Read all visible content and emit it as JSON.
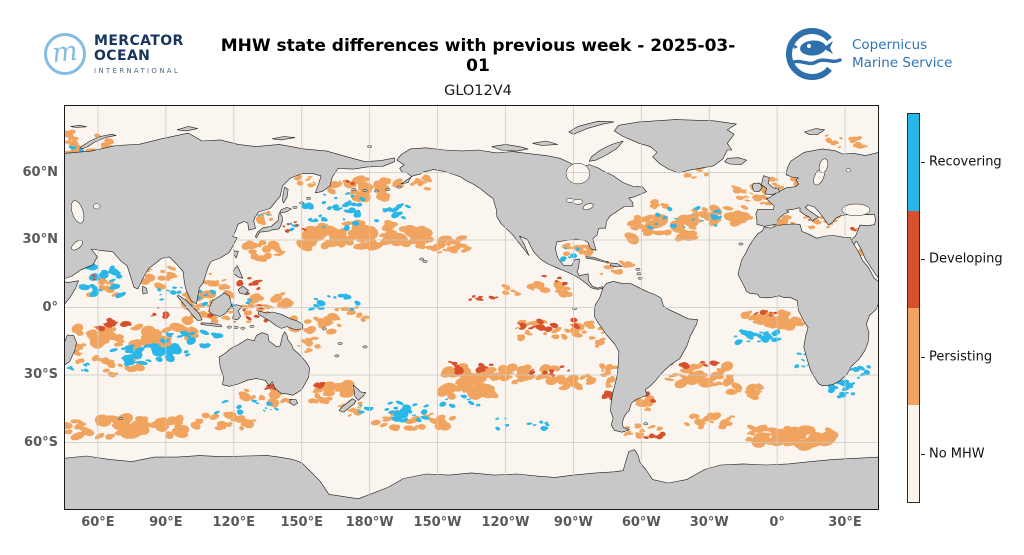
{
  "header": {
    "mercator_logo": {
      "line1": "MERCATOR",
      "line2": "OCEAN",
      "line3": "INTERNATIONAL"
    },
    "title": "MHW state differences with previous week - 2025-03-01",
    "subtitle": "GLO12V4",
    "copernicus_logo": {
      "line1": "Copernicus",
      "line2": "Marine Service"
    }
  },
  "map": {
    "lon_labels": [
      "60°E",
      "90°E",
      "120°E",
      "150°E",
      "180°W",
      "150°W",
      "120°W",
      "90°W",
      "60°W",
      "30°W",
      "0°",
      "30°E"
    ],
    "lat_labels": [
      "60°N",
      "30°N",
      "0°",
      "30°S",
      "60°S"
    ],
    "colors": {
      "land": "#c8c8c8",
      "coast": "#1a1a1a",
      "ocean": "#fbf5ef",
      "grid": "#c9c9c9",
      "recovering": "#29b6e8",
      "developing": "#d6502d",
      "persisting": "#f0a45f",
      "no_mhw": "#faf3ec"
    },
    "legend": [
      {
        "label": "Recovering",
        "key": "recovering"
      },
      {
        "label": "Developing",
        "key": "developing"
      },
      {
        "label": "Persisting",
        "key": "persisting"
      },
      {
        "label": "No MHW",
        "key": "no_mhw"
      }
    ],
    "mhw_clusters": {
      "persisting": [
        [
          55,
          73,
          20,
          13,
          20,
          5
        ],
        [
          390,
          74,
          18,
          6,
          12,
          4
        ],
        [
          175,
          53,
          28,
          9,
          24,
          7
        ],
        [
          199,
          56,
          14,
          7,
          10,
          5
        ],
        [
          152,
          57,
          10,
          6,
          8,
          4
        ],
        [
          178,
          32,
          55,
          11,
          55,
          8
        ],
        [
          213,
          28,
          22,
          8,
          18,
          6
        ],
        [
          133,
          25,
          18,
          9,
          16,
          5
        ],
        [
          120,
          0,
          48,
          13,
          46,
          6
        ],
        [
          155,
          -7,
          24,
          8,
          18,
          5
        ],
        [
          88,
          13,
          14,
          9,
          14,
          5
        ],
        [
          61,
          9,
          14,
          8,
          10,
          4
        ],
        [
          75,
          -13,
          55,
          9,
          48,
          7
        ],
        [
          70,
          -26,
          28,
          8,
          16,
          5
        ],
        [
          49,
          -20,
          7,
          9,
          8,
          4
        ],
        [
          72,
          -53,
          52,
          9,
          50,
          8
        ],
        [
          118,
          -50,
          30,
          8,
          18,
          5
        ],
        [
          135,
          -40,
          24,
          8,
          18,
          5
        ],
        [
          163,
          -38,
          17,
          9,
          20,
          6
        ],
        [
          172,
          -45,
          12,
          6,
          10,
          4
        ],
        [
          200,
          -50,
          38,
          8,
          22,
          5
        ],
        [
          223,
          -33,
          21,
          13,
          36,
          8
        ],
        [
          250,
          -30,
          34,
          7,
          26,
          6
        ],
        [
          271,
          -33,
          16,
          6,
          12,
          5
        ],
        [
          286,
          -31,
          7,
          11,
          10,
          4
        ],
        [
          253,
          8,
          28,
          6,
          20,
          5
        ],
        [
          262,
          -10,
          34,
          8,
          26,
          5
        ],
        [
          281,
          -13,
          7,
          9,
          8,
          4
        ],
        [
          272,
          25,
          12,
          7,
          12,
          5
        ],
        [
          288,
          17,
          18,
          6,
          12,
          4
        ],
        [
          310,
          35,
          29,
          10,
          34,
          7
        ],
        [
          335,
          42,
          24,
          8,
          22,
          6
        ],
        [
          349,
          50,
          16,
          8,
          16,
          5
        ],
        [
          366,
          55,
          18,
          7,
          12,
          4
        ],
        [
          308,
          45,
          9,
          5,
          7,
          4
        ],
        [
          325,
          60,
          10,
          5,
          6,
          3
        ],
        [
          373,
          38,
          28,
          5,
          20,
          4
        ],
        [
          398,
          20,
          5,
          11,
          8,
          3
        ],
        [
          50,
          27,
          6,
          3,
          4,
          3
        ],
        [
          358,
          -6,
          26,
          8,
          26,
          6
        ],
        [
          325,
          -30,
          29,
          8,
          26,
          6
        ],
        [
          344,
          -37,
          18,
          6,
          13,
          5
        ],
        [
          300,
          -43,
          9,
          9,
          10,
          5
        ],
        [
          365,
          -57,
          38,
          8,
          40,
          8
        ],
        [
          330,
          -51,
          22,
          6,
          14,
          5
        ],
        [
          300,
          -55,
          18,
          5,
          10,
          4
        ],
        [
          135,
          40,
          7,
          5,
          7,
          4
        ],
        [
          112,
          13,
          11,
          8,
          10,
          4
        ],
        [
          152,
          -17,
          12,
          7,
          9,
          4
        ],
        [
          170,
          -3,
          20,
          6,
          10,
          4
        ]
      ],
      "recovering": [
        [
          50,
          70,
          8,
          5,
          6,
          3
        ],
        [
          388,
          66,
          10,
          5,
          7,
          3
        ],
        [
          172,
          49,
          26,
          7,
          12,
          3
        ],
        [
          174,
          42,
          46,
          7,
          26,
          4
        ],
        [
          160,
          37,
          30,
          5,
          12,
          3
        ],
        [
          115,
          4,
          28,
          9,
          14,
          3
        ],
        [
          100,
          -16,
          28,
          11,
          24,
          5
        ],
        [
          62,
          12,
          17,
          13,
          22,
          5
        ],
        [
          92,
          6,
          10,
          6,
          8,
          3
        ],
        [
          80,
          -21,
          28,
          8,
          24,
          5
        ],
        [
          52,
          -27,
          8,
          5,
          6,
          3
        ],
        [
          125,
          -45,
          28,
          7,
          12,
          3
        ],
        [
          195,
          -46,
          38,
          9,
          26,
          4
        ],
        [
          220,
          -42,
          16,
          5,
          6,
          3
        ],
        [
          268,
          24,
          8,
          5,
          5,
          3
        ],
        [
          320,
          40,
          38,
          9,
          18,
          3
        ],
        [
          394,
          43,
          7,
          3,
          6,
          3
        ],
        [
          355,
          -14,
          28,
          6,
          18,
          4
        ],
        [
          370,
          -23,
          9,
          7,
          7,
          3
        ],
        [
          272,
          58,
          6,
          5,
          5,
          3
        ],
        [
          132,
          42,
          6,
          4,
          4,
          2
        ],
        [
          165,
          2,
          22,
          7,
          12,
          4
        ],
        [
          248,
          -52,
          30,
          6,
          10,
          3
        ],
        [
          390,
          -35,
          12,
          8,
          10,
          4
        ],
        [
          397,
          -28,
          8,
          8,
          8,
          3
        ]
      ],
      "developing": [
        [
          148,
          36,
          12,
          5,
          7,
          3
        ],
        [
          127,
          10,
          10,
          8,
          9,
          4
        ],
        [
          122,
          -3,
          26,
          8,
          10,
          3
        ],
        [
          86,
          -2,
          8,
          5,
          5,
          3
        ],
        [
          67,
          -9,
          14,
          5,
          8,
          4
        ],
        [
          58,
          13,
          6,
          4,
          3,
          2
        ],
        [
          136,
          -36,
          5,
          3,
          3,
          3
        ],
        [
          158,
          -34,
          9,
          4,
          5,
          3
        ],
        [
          225,
          -26,
          20,
          4,
          8,
          4
        ],
        [
          255,
          -28,
          28,
          4,
          9,
          3
        ],
        [
          287,
          -38,
          7,
          8,
          8,
          4
        ],
        [
          232,
          4,
          17,
          4,
          6,
          4
        ],
        [
          262,
          12,
          10,
          5,
          5,
          3
        ],
        [
          258,
          -8,
          30,
          5,
          10,
          4
        ],
        [
          302,
          -40,
          7,
          5,
          5,
          3
        ],
        [
          322,
          -25,
          24,
          3,
          9,
          4
        ],
        [
          374,
          40,
          4,
          3,
          3,
          2
        ],
        [
          352,
          -2,
          18,
          3,
          6,
          3
        ],
        [
          305,
          -57,
          10,
          4,
          5,
          3
        ],
        [
          170,
          55,
          8,
          4,
          3,
          2
        ],
        [
          393,
          35,
          5,
          3,
          3,
          2
        ]
      ]
    }
  }
}
